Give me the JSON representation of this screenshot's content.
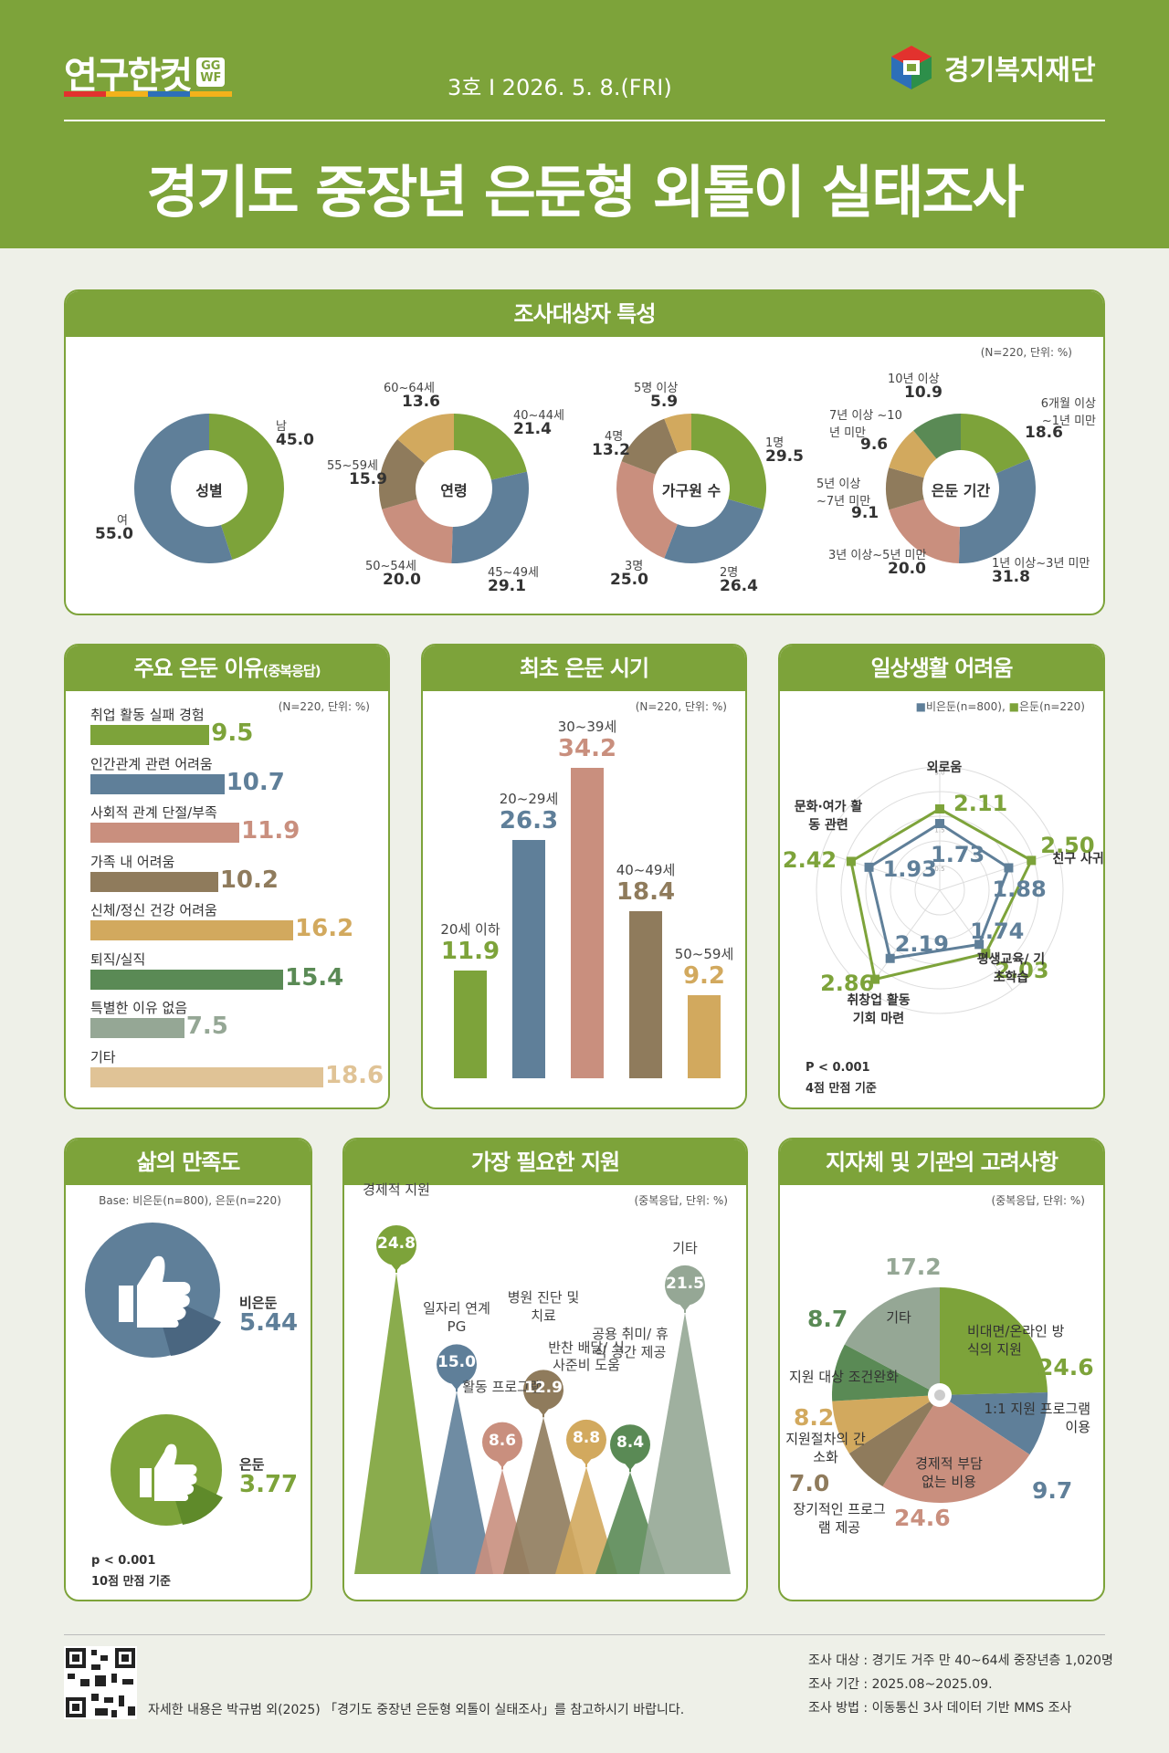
{
  "header": {
    "logo_text": "연구한컷",
    "logo_badge_top": "GG",
    "logo_badge_bottom": "WF",
    "issue": "3호 I 2026. 5. 8.(FRI)",
    "org": "경기복지재단",
    "title": "경기도 중장년 은둔형 외톨이 실태조사",
    "colors": {
      "header_green": "#7da33a",
      "background": "#eef0e8"
    }
  },
  "profile": {
    "title": "조사대상자 특성",
    "note": "(N=220, 단위: %)",
    "gender": {
      "center": "성별",
      "slices": [
        {
          "label": "남",
          "value": "45.0",
          "color": "#7da33a"
        },
        {
          "label": "여",
          "value": "55.0",
          "color": "#5f7f99"
        }
      ]
    },
    "age": {
      "center": "연령",
      "slices": [
        {
          "label": "40~44세",
          "value": "21.4",
          "color": "#7da33a"
        },
        {
          "label": "45~49세",
          "value": "29.1",
          "color": "#5f7f99"
        },
        {
          "label": "50~54세",
          "value": "20.0",
          "color": "#c98f7e"
        },
        {
          "label": "55~59세",
          "value": "15.9",
          "color": "#8f7b5c"
        },
        {
          "label": "60~64세",
          "value": "13.6",
          "color": "#d2a95e"
        }
      ]
    },
    "household": {
      "center": "가구원 수",
      "slices": [
        {
          "label": "1명",
          "value": "29.5",
          "color": "#7da33a"
        },
        {
          "label": "2명",
          "value": "26.4",
          "color": "#5f7f99"
        },
        {
          "label": "3명",
          "value": "25.0",
          "color": "#c98f7e"
        },
        {
          "label": "4명",
          "value": "13.2",
          "color": "#8f7b5c"
        },
        {
          "label": "5명 이상",
          "value": "5.9",
          "color": "#d2a95e"
        }
      ]
    },
    "period": {
      "center": "은둔 기간",
      "slices": [
        {
          "label": "6개월 이상 ~1년 미만",
          "value": "18.6",
          "color": "#7da33a"
        },
        {
          "label": "1년 이상~3년 미만",
          "value": "31.8",
          "color": "#5f7f99"
        },
        {
          "label": "3년 이상~5년 미만",
          "value": "20.0",
          "color": "#c98f7e"
        },
        {
          "label": "5년 이상 ~7년 미만",
          "value": "9.1",
          "color": "#8f7b5c"
        },
        {
          "label": "7년 이상 ~10년 미만",
          "value": "9.6",
          "color": "#d2a95e"
        },
        {
          "label": "10년 이상",
          "value": "10.9",
          "color": "#5a8a55"
        }
      ]
    }
  },
  "reasons": {
    "title": "주요 은둔 이유",
    "title_small": "(중복응답)",
    "note": "(N=220, 단위: %)",
    "items": [
      {
        "label": "취업 활동 실패 경험",
        "value": "9.5",
        "color": "#7da33a"
      },
      {
        "label": "인간관계 관련 어려움",
        "value": "10.7",
        "color": "#5f7f99"
      },
      {
        "label": "사회적 관계 단절/부족",
        "value": "11.9",
        "color": "#c98f7e"
      },
      {
        "label": "가족 내 어려움",
        "value": "10.2",
        "color": "#8f7b5c"
      },
      {
        "label": "신체/정신 건강 어려움",
        "value": "16.2",
        "color": "#d2a95e"
      },
      {
        "label": "퇴직/실직",
        "value": "15.4",
        "color": "#5a8a55"
      },
      {
        "label": "특별한 이유 없음",
        "value": "7.5",
        "color": "#95a795"
      },
      {
        "label": "기타",
        "value": "18.6",
        "color": "#e0c396"
      }
    ]
  },
  "onset": {
    "title": "최초 은둔 시기",
    "note": "(N=220, 단위: %)",
    "bars": [
      {
        "label": "20세 이하",
        "value": "11.9",
        "color": "#7da33a"
      },
      {
        "label": "20~29세",
        "value": "26.3",
        "color": "#5f7f99"
      },
      {
        "label": "30~39세",
        "value": "34.2",
        "color": "#c98f7e"
      },
      {
        "label": "40~49세",
        "value": "18.4",
        "color": "#8f7b5c"
      },
      {
        "label": "50~59세",
        "value": "9.2",
        "color": "#d2a95e"
      }
    ]
  },
  "difficulty": {
    "title": "일상생활 어려움",
    "legend_a": "비은둔(n=800)",
    "legend_b": "은둔(n=220)",
    "ticks": [
      "3.0",
      "1.5",
      "0.5"
    ],
    "axes": [
      {
        "label": "외로움",
        "a": "1.73",
        "b": "2.11"
      },
      {
        "label": "친구 사귀기",
        "a": "1.88",
        "b": "2.50"
      },
      {
        "label": "평생교육/ 기초학습",
        "a": "1.74",
        "b": "2.03"
      },
      {
        "label": "취창업 활동 기회 마련",
        "a": "2.19",
        "b": "2.86"
      },
      {
        "label": "문화·여가 활동 관련",
        "a": "1.93",
        "b": "2.42"
      }
    ],
    "p_value": "P < 0.001",
    "scale": "4점 만점 기준",
    "color_a": "#5f7f99",
    "color_b": "#7da33a"
  },
  "satisfaction": {
    "title": "삶의 만족도",
    "base": "Base: 비은둔(n=800), 은둔(n=220)",
    "non_label": "비은둔",
    "non_value": "5.44",
    "rec_label": "은둔",
    "rec_value": "3.77",
    "p_value": "p < 0.001",
    "scale": "10점 만점 기준"
  },
  "support": {
    "title": "가장 필요한 지원",
    "note": "(중복응답, 단위: %)",
    "items": [
      {
        "label": "경제적 지원",
        "value": "24.8",
        "color": "#7da33a"
      },
      {
        "label": "일자리 연계PG",
        "value": "15.0",
        "color": "#5f7f99"
      },
      {
        "label": "활동 프로그램",
        "value": "8.6",
        "color": "#c98f7e"
      },
      {
        "label": "병원 진단 및 치료",
        "value": "12.9",
        "color": "#8f7b5c"
      },
      {
        "label": "반찬 배달/ 식사준비 도움",
        "value": "8.8",
        "color": "#d2a95e"
      },
      {
        "label": "공용 취미/ 휴식 공간 제공",
        "value": "8.4",
        "color": "#5a8a55"
      },
      {
        "label": "기타",
        "value": "21.5",
        "color": "#95a795"
      }
    ]
  },
  "considerations": {
    "title": "지자체 및 기관의 고려사항",
    "note": "(중복응답, 단위: %)",
    "items": [
      {
        "label": "비대면/온라인 방식의 지원",
        "value": "24.6",
        "color": "#7da33a"
      },
      {
        "label": "1:1 지원 프로그램 이용",
        "value": "9.7",
        "color": "#5f7f99"
      },
      {
        "label": "경제적 부담 없는 비용",
        "value": "24.6",
        "color": "#c98f7e"
      },
      {
        "label": "장기적인 프로그램 제공",
        "value": "7.0",
        "color": "#8f7b5c"
      },
      {
        "label": "지원절차의 간소화",
        "value": "8.2",
        "color": "#d2a95e"
      },
      {
        "label": "지원 대상 조건완화",
        "value": "8.7",
        "color": "#5a8a55"
      },
      {
        "label": "기타",
        "value": "17.2",
        "color": "#95a795"
      }
    ]
  },
  "footer": {
    "reference": "자세한 내용은 박규범 외(2025) 「경기도 중장년 은둔형 외톨이 실태조사」를 참고하시기 바랍니다.",
    "target": "조사 대상 : 경기도 거주 만 40~64세 중장년층 1,020명",
    "period": "조사 기간 : 2025.08~2025.09.",
    "method": "조사 방법 : 이동통신 3사 데이터 기반 MMS 조사"
  }
}
